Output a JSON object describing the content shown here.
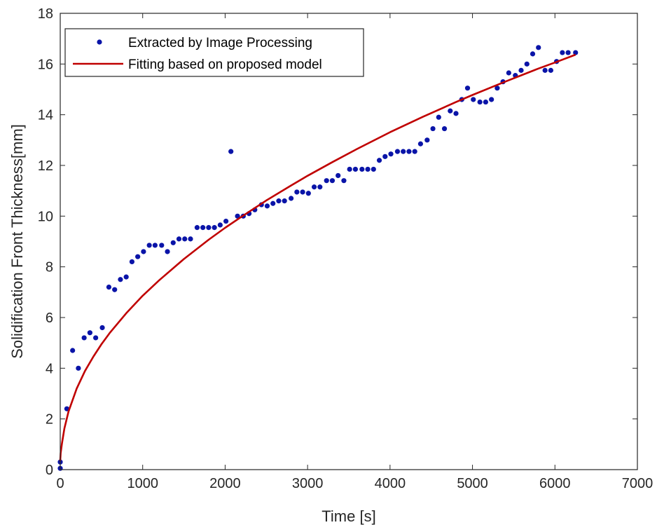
{
  "chart_data": {
    "type": "scatter",
    "title": "",
    "xlabel": "Time [s]",
    "ylabel": "Solidification Front Thickness[mm]",
    "xlim": [
      0,
      7000
    ],
    "ylim": [
      0,
      18
    ],
    "xticks": [
      0,
      1000,
      2000,
      3000,
      4000,
      5000,
      6000,
      7000
    ],
    "yticks": [
      0,
      2,
      4,
      6,
      8,
      10,
      12,
      14,
      16,
      18
    ],
    "grid": false,
    "legend_position": "top-left",
    "series": [
      {
        "name": "Extracted by Image Processing",
        "kind": "scatter",
        "color": "#0a14a8",
        "x": [
          0,
          0,
          80,
          150,
          220,
          290,
          360,
          430,
          510,
          590,
          660,
          730,
          800,
          870,
          940,
          1010,
          1080,
          1150,
          1230,
          1300,
          1370,
          1440,
          1510,
          1580,
          1660,
          1730,
          1800,
          1870,
          1940,
          2010,
          2070,
          2150,
          2220,
          2290,
          2360,
          2440,
          2510,
          2580,
          2650,
          2720,
          2800,
          2870,
          2940,
          3010,
          3080,
          3150,
          3230,
          3300,
          3370,
          3440,
          3510,
          3580,
          3660,
          3730,
          3800,
          3870,
          3940,
          4010,
          4090,
          4160,
          4230,
          4300,
          4370,
          4450,
          4520,
          4590,
          4660,
          4730,
          4800,
          4870,
          4940,
          5010,
          5090,
          5160,
          5230,
          5300,
          5370,
          5440,
          5520,
          5590,
          5660,
          5730,
          5800,
          5880,
          5950,
          6020,
          6090,
          6160,
          6250
        ],
        "y": [
          0.3,
          0.05,
          2.4,
          4.7,
          4.0,
          5.2,
          5.4,
          5.2,
          5.6,
          7.2,
          7.1,
          7.5,
          7.6,
          8.2,
          8.4,
          8.6,
          8.85,
          8.85,
          8.85,
          8.6,
          8.95,
          9.1,
          9.1,
          9.1,
          9.55,
          9.55,
          9.55,
          9.55,
          9.65,
          9.8,
          12.55,
          10.0,
          10.0,
          10.1,
          10.25,
          10.45,
          10.4,
          10.5,
          10.6,
          10.6,
          10.7,
          10.95,
          10.95,
          10.9,
          11.15,
          11.15,
          11.4,
          11.4,
          11.6,
          11.4,
          11.85,
          11.85,
          11.85,
          11.85,
          11.85,
          12.2,
          12.35,
          12.45,
          12.55,
          12.55,
          12.55,
          12.55,
          12.85,
          13.0,
          13.45,
          13.9,
          13.45,
          14.15,
          14.05,
          14.6,
          15.05,
          14.6,
          14.5,
          14.5,
          14.6,
          15.05,
          15.3,
          15.65,
          15.55,
          15.75,
          16.0,
          16.4,
          16.65,
          15.75,
          15.75,
          16.1,
          16.45,
          16.45,
          16.45
        ]
      },
      {
        "name": "Fitting based on proposed model",
        "kind": "line",
        "color": "#c00000",
        "x": [
          0,
          5,
          20,
          50,
          100,
          200,
          300,
          400,
          500,
          600,
          800,
          1000,
          1200,
          1500,
          1800,
          2000,
          2200,
          2500,
          2800,
          3000,
          3300,
          3600,
          4000,
          4400,
          4800,
          5000,
          5400,
          5800,
          6000,
          6250
        ],
        "y": [
          0.35,
          0.65,
          1.02,
          1.62,
          2.29,
          3.2,
          3.89,
          4.45,
          4.95,
          5.39,
          6.17,
          6.86,
          7.47,
          8.31,
          9.07,
          9.54,
          9.98,
          10.62,
          11.21,
          11.59,
          12.13,
          12.65,
          13.31,
          13.92,
          14.5,
          14.78,
          15.31,
          15.82,
          16.06,
          16.37
        ]
      }
    ]
  }
}
